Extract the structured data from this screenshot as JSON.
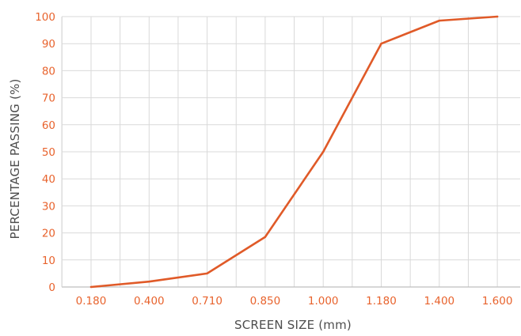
{
  "chart_data": {
    "type": "line",
    "xlabel": "SCREEN SIZE (mm)",
    "ylabel": "PERCENTAGE PASSING (%)",
    "categories": [
      "0.180",
      "0.400",
      "0.710",
      "0.850",
      "1.000",
      "1.180",
      "1.400",
      "1.600"
    ],
    "yticks": [
      "0",
      "10",
      "20",
      "30",
      "40",
      "50",
      "60",
      "70",
      "80",
      "90",
      "100"
    ],
    "ylim": [
      0,
      100
    ],
    "grid": true,
    "series": [
      {
        "values": [
          0,
          2,
          5,
          18.5,
          50,
          90,
          98.5,
          100
        ],
        "color": "#e05a28"
      }
    ]
  },
  "colors": {
    "tick_text": "#e8632d",
    "axis_title": "#4d4d4d",
    "grid": "#d9d9d9"
  }
}
